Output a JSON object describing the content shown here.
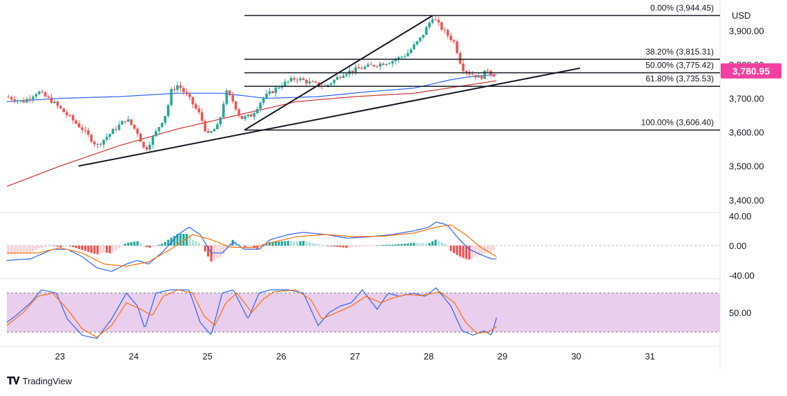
{
  "currency": "USD",
  "brand": "TradingView",
  "price_badge": {
    "value": "3,780.95",
    "color": "#f23fa0"
  },
  "colors": {
    "up": "#26a69a",
    "down": "#ef5350",
    "ma_slow": "#d32f2f",
    "ma_fast": "#2962ff",
    "macd": "#2962ff",
    "signal": "#ff6d00",
    "stoch_k": "#2962ff",
    "stoch_d": "#ff6d00",
    "stoch_band": "#e1bee7"
  },
  "chart_data": [
    {
      "type": "candlestick",
      "title": "",
      "y_ticks": [
        "3,900.00",
        "3,800.00",
        "3,700.00",
        "3,600.00",
        "3,500.00",
        "3,400.00"
      ],
      "y_tick_values": [
        3900,
        3800,
        3700,
        3600,
        3500,
        3400
      ],
      "ylim": [
        3367,
        3974
      ],
      "x_ticks": [
        "23",
        "24",
        "25",
        "26",
        "27",
        "28",
        "29",
        "30",
        "31"
      ],
      "xlim": [
        22.28,
        31.95
      ],
      "last_price": 3780.95,
      "price_anchors": [
        [
          22.28,
          3705
        ],
        [
          22.5,
          3690
        ],
        [
          22.7,
          3720
        ],
        [
          22.9,
          3690
        ],
        [
          23.05,
          3660
        ],
        [
          23.3,
          3610
        ],
        [
          23.5,
          3560
        ],
        [
          23.7,
          3600
        ],
        [
          23.9,
          3640
        ],
        [
          24.05,
          3600
        ],
        [
          24.15,
          3545
        ],
        [
          24.3,
          3600
        ],
        [
          24.45,
          3660
        ],
        [
          24.5,
          3720
        ],
        [
          24.6,
          3740
        ],
        [
          24.75,
          3700
        ],
        [
          24.9,
          3650
        ],
        [
          25.0,
          3590
        ],
        [
          25.15,
          3620
        ],
        [
          25.25,
          3720
        ],
        [
          25.35,
          3690
        ],
        [
          25.45,
          3640
        ],
        [
          25.6,
          3650
        ],
        [
          25.75,
          3700
        ],
        [
          26.0,
          3740
        ],
        [
          26.2,
          3760
        ],
        [
          26.4,
          3745
        ],
        [
          26.6,
          3735
        ],
        [
          26.85,
          3775
        ],
        [
          27.1,
          3790
        ],
        [
          27.3,
          3800
        ],
        [
          27.5,
          3810
        ],
        [
          27.7,
          3830
        ],
        [
          27.9,
          3880
        ],
        [
          28.0,
          3920
        ],
        [
          28.05,
          3940
        ],
        [
          28.2,
          3900
        ],
        [
          28.35,
          3865
        ],
        [
          28.45,
          3790
        ],
        [
          28.55,
          3775
        ],
        [
          28.7,
          3760
        ],
        [
          28.8,
          3785
        ],
        [
          28.87,
          3765
        ],
        [
          28.92,
          3781
        ]
      ],
      "ma_slow_anchors": [
        [
          22.28,
          3440
        ],
        [
          23.0,
          3500
        ],
        [
          23.8,
          3560
        ],
        [
          24.6,
          3610
        ],
        [
          25.4,
          3650
        ],
        [
          26.2,
          3690
        ],
        [
          27.0,
          3705
        ],
        [
          27.8,
          3715
        ],
        [
          28.5,
          3738
        ],
        [
          28.92,
          3752
        ]
      ],
      "ma_fast_anchors": [
        [
          22.28,
          3690
        ],
        [
          23.0,
          3700
        ],
        [
          23.8,
          3705
        ],
        [
          24.6,
          3715
        ],
        [
          25.2,
          3715
        ],
        [
          25.8,
          3700
        ],
        [
          26.5,
          3705
        ],
        [
          27.2,
          3720
        ],
        [
          27.8,
          3730
        ],
        [
          28.3,
          3755
        ],
        [
          28.6,
          3765
        ],
        [
          28.92,
          3770
        ]
      ],
      "fibonacci": [
        {
          "label": "0.00% (3,944.45)",
          "value": 3944.45
        },
        {
          "label": "38.20% (3,815.31)",
          "value": 3815.31
        },
        {
          "label": "50.00% (3,775.42)",
          "value": 3775.42
        },
        {
          "label": "61.80% (3,735.53)",
          "value": 3735.53
        },
        {
          "label": "100.00% (3,606.40)",
          "value": 3606.4
        }
      ],
      "fib_start_x": 25.5,
      "trendlines": [
        {
          "from": [
            23.25,
            3500
          ],
          "to": [
            30.05,
            3789
          ]
        },
        {
          "from": [
            25.5,
            3606
          ],
          "to": [
            28.05,
            3944
          ]
        }
      ]
    },
    {
      "type": "macd",
      "y_ticks": [
        "40.00",
        "0.00",
        "-40.00"
      ],
      "y_tick_values": [
        40,
        0,
        -40
      ],
      "ylim": [
        -43,
        43
      ],
      "macd_anchors": [
        [
          22.28,
          -20
        ],
        [
          22.6,
          -18
        ],
        [
          22.9,
          -5
        ],
        [
          23.1,
          -5
        ],
        [
          23.3,
          -15
        ],
        [
          23.5,
          -30
        ],
        [
          23.7,
          -35
        ],
        [
          23.9,
          -25
        ],
        [
          24.05,
          -20
        ],
        [
          24.2,
          -25
        ],
        [
          24.4,
          -8
        ],
        [
          24.6,
          15
        ],
        [
          24.75,
          25
        ],
        [
          24.9,
          15
        ],
        [
          25.05,
          -10
        ],
        [
          25.2,
          -10
        ],
        [
          25.35,
          5
        ],
        [
          25.5,
          -5
        ],
        [
          25.7,
          -5
        ],
        [
          25.85,
          8
        ],
        [
          26.1,
          15
        ],
        [
          26.3,
          18
        ],
        [
          26.6,
          15
        ],
        [
          26.9,
          10
        ],
        [
          27.2,
          12
        ],
        [
          27.5,
          15
        ],
        [
          27.8,
          20
        ],
        [
          28.0,
          25
        ],
        [
          28.1,
          32
        ],
        [
          28.25,
          28
        ],
        [
          28.4,
          10
        ],
        [
          28.55,
          -5
        ],
        [
          28.7,
          -12
        ],
        [
          28.85,
          -18
        ],
        [
          28.92,
          -18
        ]
      ],
      "signal_anchors": [
        [
          22.28,
          -10
        ],
        [
          22.7,
          -10
        ],
        [
          23.0,
          -3
        ],
        [
          23.3,
          -10
        ],
        [
          23.6,
          -25
        ],
        [
          23.9,
          -28
        ],
        [
          24.2,
          -22
        ],
        [
          24.5,
          -5
        ],
        [
          24.8,
          15
        ],
        [
          25.05,
          8
        ],
        [
          25.3,
          -2
        ],
        [
          25.6,
          -3
        ],
        [
          25.9,
          5
        ],
        [
          26.2,
          12
        ],
        [
          26.6,
          15
        ],
        [
          27.0,
          12
        ],
        [
          27.4,
          13
        ],
        [
          27.8,
          17
        ],
        [
          28.1,
          25
        ],
        [
          28.3,
          28
        ],
        [
          28.5,
          15
        ],
        [
          28.7,
          -2
        ],
        [
          28.92,
          -15
        ]
      ],
      "histogram_sign_changes": [
        [
          22.28,
          -1
        ],
        [
          22.8,
          1
        ],
        [
          23.15,
          -1
        ],
        [
          23.9,
          1
        ],
        [
          24.55,
          1
        ],
        [
          25.0,
          -1
        ],
        [
          25.3,
          1
        ],
        [
          25.5,
          -1
        ],
        [
          25.75,
          1
        ],
        [
          26.4,
          1
        ],
        [
          26.7,
          -1
        ],
        [
          27.3,
          1
        ],
        [
          28.4,
          -1
        ]
      ]
    },
    {
      "type": "stochastic",
      "y_ticks": [
        "50.00"
      ],
      "y_tick_values": [
        50
      ],
      "ylim": [
        0,
        100
      ],
      "band": [
        20,
        80
      ],
      "k_anchors": [
        [
          22.28,
          35
        ],
        [
          22.4,
          45
        ],
        [
          22.6,
          65
        ],
        [
          22.75,
          85
        ],
        [
          22.95,
          80
        ],
        [
          23.1,
          40
        ],
        [
          23.3,
          15
        ],
        [
          23.5,
          10
        ],
        [
          23.7,
          40
        ],
        [
          23.9,
          80
        ],
        [
          24.05,
          60
        ],
        [
          24.15,
          25
        ],
        [
          24.3,
          80
        ],
        [
          24.5,
          85
        ],
        [
          24.75,
          85
        ],
        [
          24.9,
          35
        ],
        [
          25.05,
          15
        ],
        [
          25.2,
          80
        ],
        [
          25.35,
          85
        ],
        [
          25.55,
          40
        ],
        [
          25.7,
          80
        ],
        [
          25.85,
          85
        ],
        [
          26.1,
          85
        ],
        [
          26.3,
          80
        ],
        [
          26.5,
          30
        ],
        [
          26.65,
          50
        ],
        [
          26.8,
          60
        ],
        [
          26.95,
          65
        ],
        [
          27.1,
          85
        ],
        [
          27.3,
          55
        ],
        [
          27.45,
          80
        ],
        [
          27.6,
          75
        ],
        [
          27.8,
          80
        ],
        [
          27.95,
          75
        ],
        [
          28.1,
          88
        ],
        [
          28.3,
          60
        ],
        [
          28.45,
          22
        ],
        [
          28.6,
          15
        ],
        [
          28.75,
          22
        ],
        [
          28.85,
          15
        ],
        [
          28.92,
          42
        ]
      ],
      "d_anchors": [
        [
          22.28,
          30
        ],
        [
          22.5,
          50
        ],
        [
          22.7,
          75
        ],
        [
          22.9,
          80
        ],
        [
          23.1,
          55
        ],
        [
          23.3,
          25
        ],
        [
          23.5,
          12
        ],
        [
          23.7,
          30
        ],
        [
          23.9,
          65
        ],
        [
          24.1,
          55
        ],
        [
          24.25,
          45
        ],
        [
          24.4,
          75
        ],
        [
          24.6,
          85
        ],
        [
          24.8,
          80
        ],
        [
          24.95,
          45
        ],
        [
          25.1,
          30
        ],
        [
          25.25,
          65
        ],
        [
          25.4,
          80
        ],
        [
          25.6,
          50
        ],
        [
          25.75,
          70
        ],
        [
          25.9,
          82
        ],
        [
          26.2,
          85
        ],
        [
          26.4,
          70
        ],
        [
          26.55,
          40
        ],
        [
          26.75,
          50
        ],
        [
          26.95,
          60
        ],
        [
          27.15,
          75
        ],
        [
          27.35,
          65
        ],
        [
          27.5,
          72
        ],
        [
          27.7,
          78
        ],
        [
          27.9,
          76
        ],
        [
          28.15,
          82
        ],
        [
          28.35,
          65
        ],
        [
          28.5,
          35
        ],
        [
          28.65,
          18
        ],
        [
          28.8,
          20
        ],
        [
          28.92,
          28
        ]
      ]
    }
  ]
}
